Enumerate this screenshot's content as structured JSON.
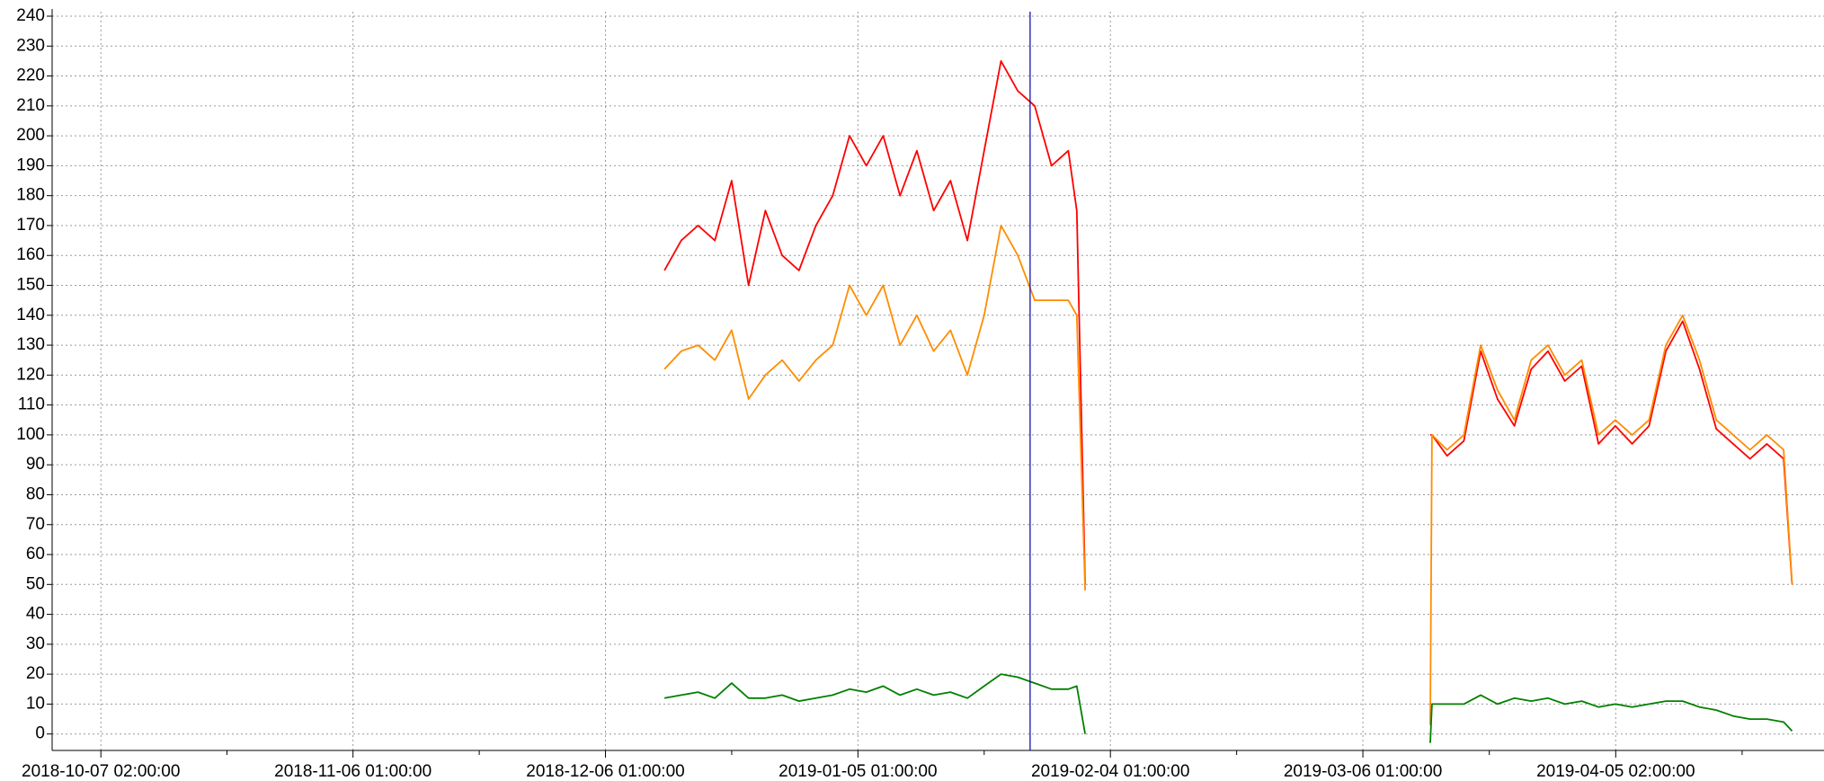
{
  "chart_data": {
    "type": "line",
    "x": [
      "2018-12-13 01:00:00",
      "2018-12-15 01:00:00",
      "2018-12-17 01:00:00",
      "2018-12-19 01:00:00",
      "2018-12-21 01:00:00",
      "2018-12-23 01:00:00",
      "2018-12-25 01:00:00",
      "2018-12-27 01:00:00",
      "2018-12-29 01:00:00",
      "2018-12-31 01:00:00",
      "2019-01-02 01:00:00",
      "2019-01-04 01:00:00",
      "2019-01-06 01:00:00",
      "2019-01-08 01:00:00",
      "2019-01-10 01:00:00",
      "2019-01-12 01:00:00",
      "2019-01-14 01:00:00",
      "2019-01-16 01:00:00",
      "2019-01-18 01:00:00",
      "2019-01-20 01:00:00",
      "2019-01-22 01:00:00",
      "2019-01-24 01:00:00",
      "2019-01-26 01:00:00",
      "2019-01-28 01:00:00",
      "2019-01-30 01:00:00",
      "2019-01-31 01:00:00",
      "2019-02-01 01:00:00",
      "2019-02-20 01:00:00",
      "2019-03-14 01:00:00",
      "2019-03-14 06:00:00",
      "2019-03-16 01:00:00",
      "2019-03-18 01:00:00",
      "2019-03-20 01:00:00",
      "2019-03-22 01:00:00",
      "2019-03-24 01:00:00",
      "2019-03-26 01:00:00",
      "2019-03-28 01:00:00",
      "2019-03-30 01:00:00",
      "2019-04-01 01:00:00",
      "2019-04-03 01:00:00",
      "2019-04-05 01:00:00",
      "2019-04-07 01:00:00",
      "2019-04-09 01:00:00",
      "2019-04-11 01:00:00",
      "2019-04-13 01:00:00",
      "2019-04-15 01:00:00",
      "2019-04-17 01:00:00",
      "2019-04-19 01:00:00",
      "2019-04-21 01:00:00",
      "2019-04-23 01:00:00",
      "2019-04-25 01:00:00",
      "2019-04-26 01:00:00"
    ],
    "series": [
      {
        "color": "#ff0000",
        "values": [
          155,
          165,
          170,
          165,
          185,
          150,
          175,
          160,
          155,
          170,
          180,
          200,
          190,
          200,
          180,
          195,
          175,
          185,
          165,
          195,
          225,
          215,
          210,
          190,
          195,
          175,
          50,
          null,
          100,
          100,
          93,
          98,
          128,
          112,
          103,
          122,
          128,
          118,
          123,
          97,
          103,
          97,
          103,
          128,
          138,
          122,
          102,
          97,
          92,
          97,
          92,
          50
        ]
      },
      {
        "color": "#ff8c00",
        "values": [
          122,
          128,
          130,
          125,
          135,
          112,
          120,
          125,
          118,
          125,
          130,
          150,
          140,
          150,
          130,
          140,
          128,
          135,
          120,
          140,
          170,
          160,
          145,
          145,
          145,
          140,
          48,
          null,
          3,
          100,
          95,
          100,
          130,
          115,
          105,
          125,
          130,
          120,
          125,
          100,
          105,
          100,
          105,
          130,
          140,
          125,
          105,
          100,
          95,
          100,
          95,
          50
        ]
      },
      {
        "color": "#008000",
        "values": [
          12,
          13,
          14,
          12,
          17,
          12,
          12,
          13,
          11,
          12,
          13,
          15,
          14,
          16,
          13,
          15,
          13,
          14,
          12,
          16,
          20,
          19,
          17,
          15,
          15,
          16,
          0,
          null,
          -3,
          10,
          10,
          10,
          13,
          10,
          12,
          11,
          12,
          10,
          11,
          9,
          10,
          9,
          10,
          11,
          11,
          9,
          8,
          6,
          5,
          5,
          4,
          1
        ]
      }
    ],
    "xlim": [
      "2018-10-01 07:00:00",
      "2019-04-29 20:00:00"
    ],
    "xticks": [
      "2018-10-07 02:00:00",
      "2018-11-06 01:00:00",
      "2018-12-06 01:00:00",
      "2019-01-05 01:00:00",
      "2019-02-04 01:00:00",
      "2019-03-06 01:00:00",
      "2019-04-05 02:00:00"
    ],
    "ylim": [
      -5.5,
      241.5
    ],
    "yticks": [
      0,
      10,
      20,
      30,
      40,
      50,
      60,
      70,
      80,
      90,
      100,
      110,
      120,
      130,
      140,
      150,
      160,
      170,
      180,
      190,
      200,
      210,
      220,
      230,
      240
    ],
    "cursor_x": "2019-01-25 12:00:00",
    "cursor_color": "#0000aa",
    "grid": true
  }
}
